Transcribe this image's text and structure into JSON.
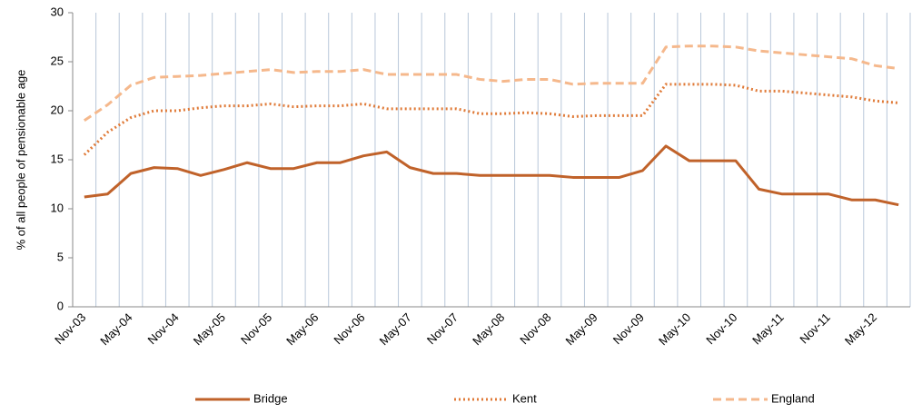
{
  "chart_data": {
    "type": "line",
    "y_axis_label": "% of all people of pensionable age",
    "categories": [
      "Nov-03",
      null,
      "May-04",
      null,
      "Nov-04",
      null,
      "May-05",
      null,
      "Nov-05",
      null,
      "May-06",
      null,
      "Nov-06",
      null,
      "May-07",
      null,
      "Nov-07",
      null,
      "May-08",
      null,
      "Nov-08",
      null,
      "May-09",
      null,
      "Nov-09",
      null,
      "May-10",
      null,
      "Nov-10",
      null,
      "May-11",
      null,
      "Nov-11",
      null,
      "May-12",
      null
    ],
    "series": [
      {
        "name": "Bridge",
        "color": "#c0622a",
        "style": "solid",
        "values": [
          11.2,
          11.5,
          13.6,
          14.2,
          14.1,
          13.4,
          14.0,
          14.7,
          14.1,
          14.1,
          14.7,
          14.7,
          15.4,
          15.8,
          14.2,
          13.6,
          13.6,
          13.4,
          13.4,
          13.4,
          13.4,
          13.2,
          13.2,
          13.2,
          13.9,
          16.4,
          14.9,
          14.9,
          14.9,
          12.0,
          11.5,
          11.5,
          11.5,
          10.9,
          10.9,
          10.4
        ]
      },
      {
        "name": "Kent",
        "color": "#e07b39",
        "style": "dotted",
        "values": [
          15.5,
          17.8,
          19.3,
          20.0,
          20.0,
          20.3,
          20.5,
          20.5,
          20.7,
          20.4,
          20.5,
          20.5,
          20.7,
          20.2,
          20.2,
          20.2,
          20.2,
          19.7,
          19.7,
          19.8,
          19.7,
          19.4,
          19.5,
          19.5,
          19.5,
          22.7,
          22.7,
          22.7,
          22.6,
          22.0,
          22.0,
          21.8,
          21.6,
          21.4,
          21.0,
          20.8
        ]
      },
      {
        "name": "England",
        "color": "#f5b88c",
        "style": "dashed",
        "values": [
          19.0,
          20.6,
          22.6,
          23.4,
          23.5,
          23.6,
          23.8,
          24.0,
          24.2,
          23.9,
          24.0,
          24.0,
          24.2,
          23.7,
          23.7,
          23.7,
          23.7,
          23.2,
          23.0,
          23.2,
          23.2,
          22.7,
          22.8,
          22.8,
          22.8,
          26.5,
          26.6,
          26.6,
          26.5,
          26.1,
          25.9,
          25.7,
          25.5,
          25.3,
          24.6,
          24.3
        ]
      }
    ],
    "ylim": [
      0,
      30
    ],
    "yticks": [
      0,
      5,
      10,
      15,
      20,
      25,
      30
    ],
    "grid": "vertical",
    "legend": "bottom"
  }
}
